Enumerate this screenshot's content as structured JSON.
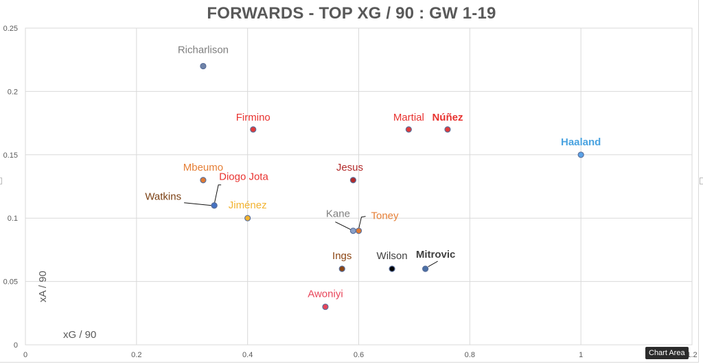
{
  "title": "FORWARDS - TOP XG / 90 : GW 1-19",
  "tooltip": "Chart Area",
  "axes": {
    "x_title": "xG / 90",
    "y_title": "xA / 90",
    "x_ticks": [
      "0",
      "0.2",
      "0.4",
      "0.6",
      "0.8",
      "1",
      "1.2"
    ],
    "y_ticks": [
      "0",
      "0.05",
      "0.1",
      "0.15",
      "0.2",
      "0.25"
    ]
  },
  "chart_data": {
    "type": "scatter",
    "title": "FORWARDS - TOP XG / 90 : GW 1-19",
    "xlabel": "xG / 90",
    "ylabel": "xA / 90",
    "xlim": [
      0,
      1.2
    ],
    "ylim": [
      0,
      0.25
    ],
    "grid": true,
    "legend": "none",
    "points": [
      {
        "label": "Richarlison",
        "x": 0.32,
        "y": 0.22,
        "color": "#7f7f7f",
        "marker": "#6f83a8",
        "bold": false
      },
      {
        "label": "Firmino",
        "x": 0.41,
        "y": 0.17,
        "color": "#e8322f",
        "marker": "#e03a3a",
        "bold": false
      },
      {
        "label": "Martial",
        "x": 0.69,
        "y": 0.17,
        "color": "#e8322f",
        "marker": "#e03a3a",
        "bold": false
      },
      {
        "label": "Núñez",
        "x": 0.76,
        "y": 0.17,
        "color": "#e8322f",
        "marker": "#e03a3a",
        "bold": true
      },
      {
        "label": "Haaland",
        "x": 1.0,
        "y": 0.15,
        "color": "#4aa3e0",
        "marker": "#5ba3e8",
        "bold": true
      },
      {
        "label": "Mbeumo",
        "x": 0.32,
        "y": 0.13,
        "color": "#e57e35",
        "marker": "#e07a33",
        "bold": false
      },
      {
        "label": "Jesus",
        "x": 0.59,
        "y": 0.13,
        "color": "#b22a2a",
        "marker": "#b22a2a",
        "bold": false
      },
      {
        "label": "Diogo Jota",
        "x": 0.34,
        "y": 0.11,
        "color": "#e8322f",
        "marker": "#4472c4",
        "bold": false
      },
      {
        "label": "Watkins",
        "x": 0.34,
        "y": 0.11,
        "color": "#7a3f12",
        "marker": "#4472c4",
        "bold": false
      },
      {
        "label": "Jiménez",
        "x": 0.4,
        "y": 0.1,
        "color": "#f2b330",
        "marker": "#f2b330",
        "bold": false
      },
      {
        "label": "Kane",
        "x": 0.59,
        "y": 0.09,
        "color": "#7f7f7f",
        "marker": "#8aa0c8",
        "bold": false
      },
      {
        "label": "Toney",
        "x": 0.6,
        "y": 0.09,
        "color": "#e57e35",
        "marker": "#e07a33",
        "bold": false
      },
      {
        "label": "Ings",
        "x": 0.57,
        "y": 0.06,
        "color": "#8b4513",
        "marker": "#8b4513",
        "bold": false
      },
      {
        "label": "Wilson",
        "x": 0.66,
        "y": 0.06,
        "color": "#404040",
        "marker": "#000000",
        "bold": false
      },
      {
        "label": "Mitrovic",
        "x": 0.72,
        "y": 0.06,
        "color": "#404040",
        "marker": "#4a6fa5",
        "bold": true
      },
      {
        "label": "Awoniyi",
        "x": 0.54,
        "y": 0.03,
        "color": "#e8455a",
        "marker": "#e8455a",
        "bold": false
      }
    ]
  }
}
